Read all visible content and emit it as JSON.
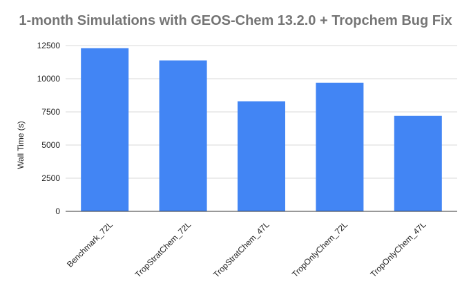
{
  "chart_data": {
    "type": "bar",
    "title": "1-month Simulations with GEOS-Chem 13.2.0 + Tropchem Bug Fix",
    "xlabel": "",
    "ylabel": "Wall Time (s)",
    "categories": [
      "Benchmark_72L",
      "TropStratChem_72L",
      "TropStratChem_47L",
      "TropOnlyChem_72L",
      "TropOnlyChem_47L"
    ],
    "values": [
      12300,
      11380,
      8300,
      9700,
      7200
    ],
    "ylim": [
      0,
      12500
    ],
    "yticks": [
      0,
      2500,
      5000,
      7500,
      10000,
      12500
    ],
    "ytick_labels": [
      "0",
      "2500",
      "5000",
      "7500",
      "10000",
      "12500"
    ],
    "grid": true,
    "legend": "none",
    "colors": {
      "bar": "#4285f4",
      "grid": "#d9d9d9",
      "axis": "#333333",
      "title": "#757575"
    }
  }
}
